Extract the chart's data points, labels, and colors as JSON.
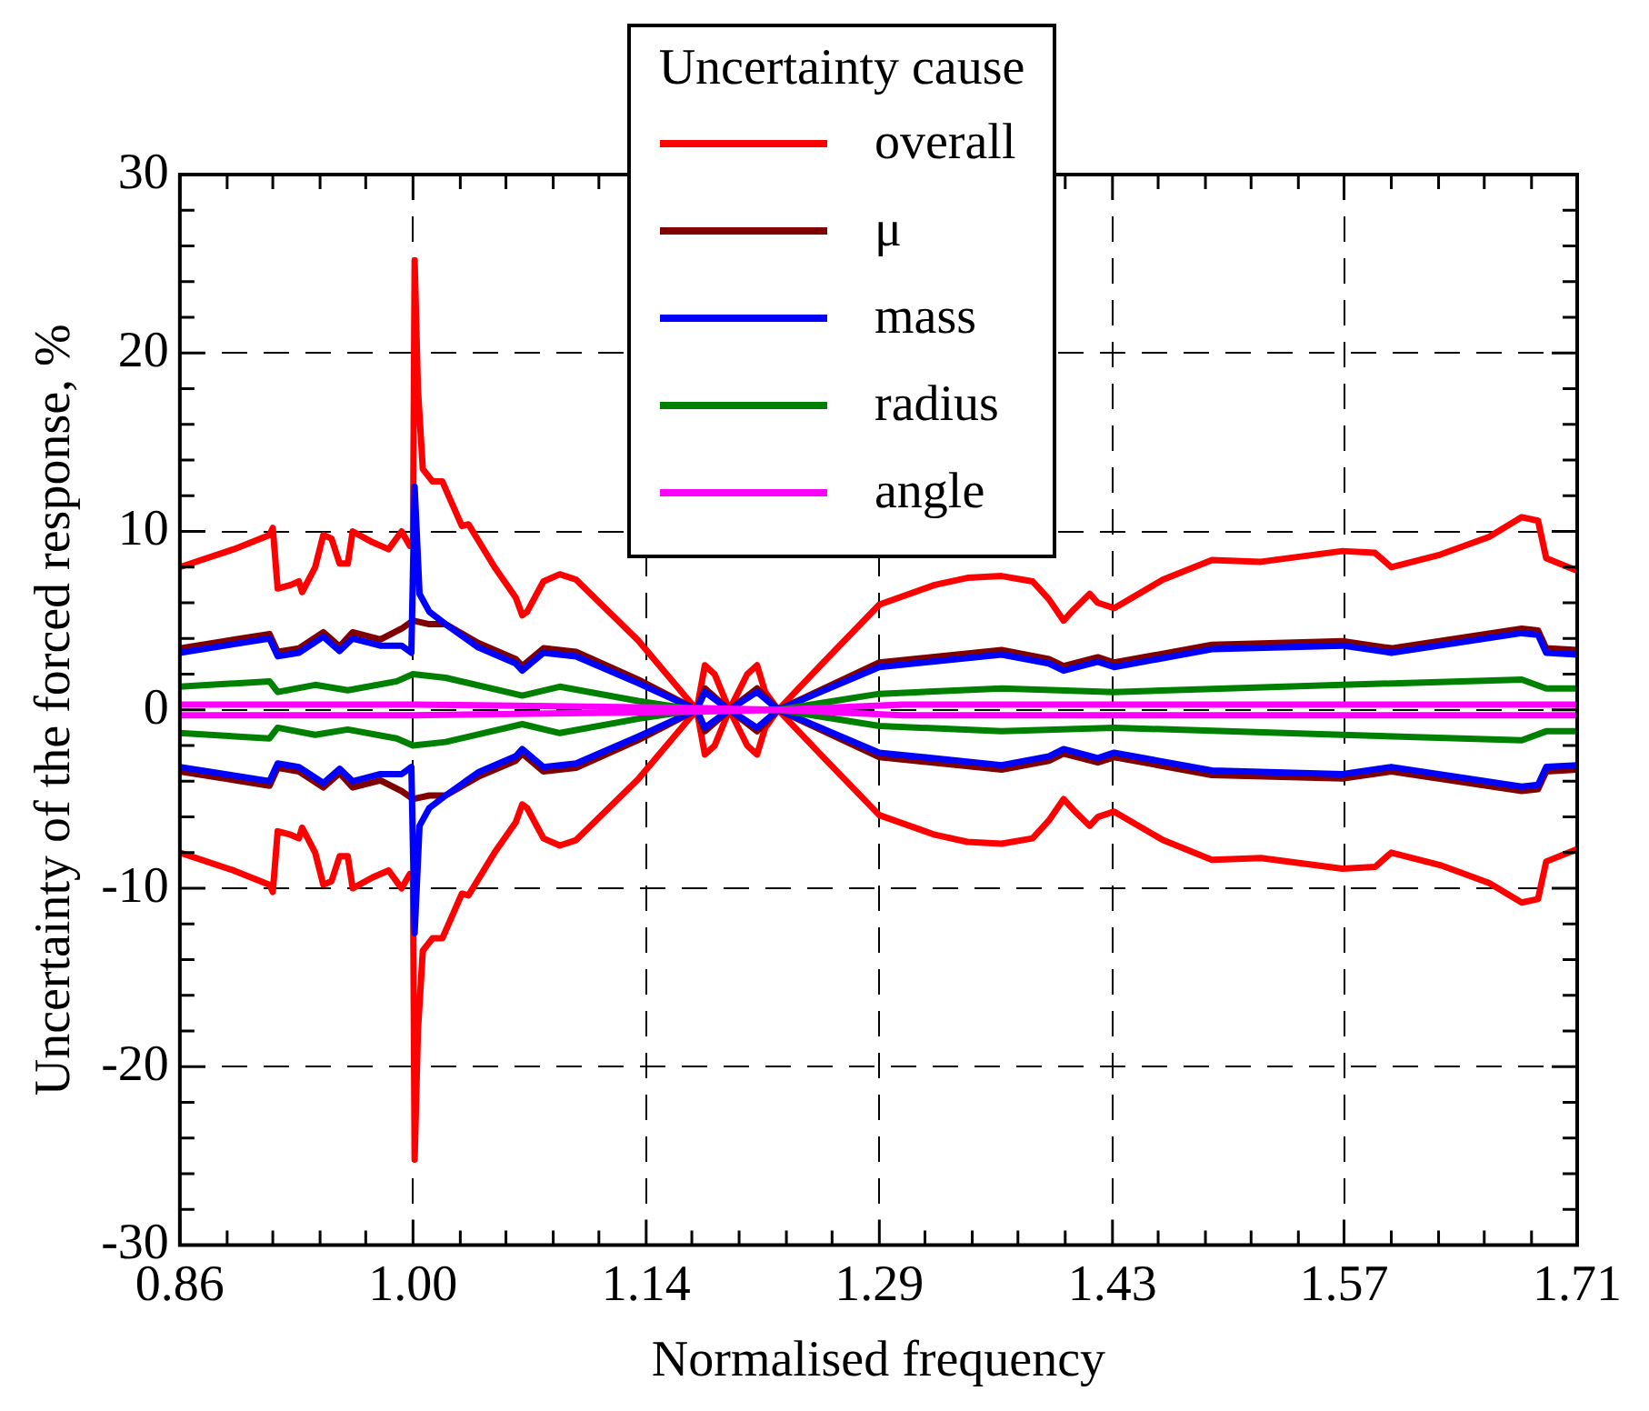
{
  "chart_data": {
    "type": "line",
    "xlabel": "Normalised frequency",
    "ylabel": "Uncertainty of the forced response, %",
    "legend_title": "Uncertainty cause",
    "legend": "top",
    "grid": true,
    "line_style": "solid",
    "marker": "none",
    "xlim": [
      0.857,
      1.714
    ],
    "xticks": [
      {
        "value": 0.857,
        "label": "0.86"
      },
      {
        "value": 0.886,
        "label": null
      },
      {
        "value": 0.914,
        "label": null
      },
      {
        "value": 0.943,
        "label": null
      },
      {
        "value": 0.971,
        "label": null
      },
      {
        "value": 1.0,
        "label": "1.00"
      },
      {
        "value": 1.029,
        "label": null
      },
      {
        "value": 1.057,
        "label": null
      },
      {
        "value": 1.086,
        "label": null
      },
      {
        "value": 1.114,
        "label": null
      },
      {
        "value": 1.143,
        "label": "1.14"
      },
      {
        "value": 1.171,
        "label": null
      },
      {
        "value": 1.2,
        "label": null
      },
      {
        "value": 1.229,
        "label": null
      },
      {
        "value": 1.257,
        "label": null
      },
      {
        "value": 1.286,
        "label": "1.29"
      },
      {
        "value": 1.314,
        "label": null
      },
      {
        "value": 1.343,
        "label": null
      },
      {
        "value": 1.371,
        "label": null
      },
      {
        "value": 1.4,
        "label": null
      },
      {
        "value": 1.429,
        "label": "1.43"
      },
      {
        "value": 1.457,
        "label": null
      },
      {
        "value": 1.486,
        "label": null
      },
      {
        "value": 1.514,
        "label": null
      },
      {
        "value": 1.543,
        "label": null
      },
      {
        "value": 1.571,
        "label": "1.57"
      },
      {
        "value": 1.6,
        "label": null
      },
      {
        "value": 1.629,
        "label": null
      },
      {
        "value": 1.657,
        "label": null
      },
      {
        "value": 1.686,
        "label": null
      },
      {
        "value": 1.714,
        "label": "1.71"
      }
    ],
    "ylim": [
      -30,
      30
    ],
    "yticks": [
      -30,
      {
        "value": -28,
        "label": null
      },
      {
        "value": -26,
        "label": null
      },
      {
        "value": -24,
        "label": null
      },
      {
        "value": -22,
        "label": null
      },
      -20,
      {
        "value": -18,
        "label": null
      },
      {
        "value": -16,
        "label": null
      },
      {
        "value": -14,
        "label": null
      },
      {
        "value": -12,
        "label": null
      },
      -10,
      {
        "value": -8,
        "label": null
      },
      {
        "value": -6,
        "label": null
      },
      {
        "value": -4,
        "label": null
      },
      {
        "value": -2,
        "label": null
      },
      0,
      {
        "value": 2,
        "label": null
      },
      {
        "value": 4,
        "label": null
      },
      {
        "value": 6,
        "label": null
      },
      {
        "value": 8,
        "label": null
      },
      10,
      {
        "value": 12,
        "label": null
      },
      {
        "value": 14,
        "label": null
      },
      {
        "value": 16,
        "label": null
      },
      {
        "value": 18,
        "label": null
      },
      20,
      {
        "value": 22,
        "label": null
      },
      {
        "value": 24,
        "label": null
      },
      {
        "value": 26,
        "label": null
      },
      {
        "value": 28,
        "label": null
      },
      30
    ],
    "series": [
      {
        "name": "overall",
        "color": "#ff0000",
        "x": [
          0.857,
          0.89,
          0.912,
          0.914,
          0.917,
          0.925,
          0.93,
          0.932,
          0.94,
          0.945,
          0.95,
          0.955,
          0.96,
          0.963,
          0.975,
          0.985,
          0.993,
          0.998,
          1.0,
          1.001,
          1.003,
          1.006,
          1.012,
          1.018,
          1.03,
          1.034,
          1.05,
          1.063,
          1.067,
          1.07,
          1.08,
          1.09,
          1.1,
          1.138,
          1.174,
          1.179,
          1.185,
          1.194,
          1.205,
          1.211,
          1.216,
          1.224,
          1.25,
          1.286,
          1.32,
          1.34,
          1.361,
          1.38,
          1.39,
          1.399,
          1.405,
          1.415,
          1.42,
          1.43,
          1.46,
          1.49,
          1.52,
          1.57,
          1.59,
          1.6,
          1.63,
          1.66,
          1.68,
          1.69,
          1.695,
          1.714
        ],
        "values": [
          8.0,
          9.0,
          9.8,
          10.2,
          6.8,
          7.0,
          7.2,
          6.6,
          8.0,
          9.8,
          9.6,
          8.2,
          8.2,
          10.0,
          9.4,
          9.0,
          10.0,
          9.2,
          9.5,
          25.2,
          18.0,
          13.5,
          12.8,
          12.8,
          10.3,
          10.4,
          8.0,
          6.3,
          5.3,
          5.5,
          7.2,
          7.6,
          7.3,
          3.9,
          0,
          2.5,
          2.0,
          0,
          2.0,
          2.5,
          1.0,
          0,
          2.5,
          5.9,
          7.0,
          7.4,
          7.5,
          7.2,
          6.2,
          5.0,
          5.6,
          6.5,
          6.0,
          5.7,
          7.3,
          8.4,
          8.3,
          8.9,
          8.8,
          8.0,
          8.7,
          9.7,
          10.8,
          10.6,
          8.5,
          7.8
        ]
      },
      {
        "color": "#ff0000",
        "x": [
          0.857,
          0.89,
          0.912,
          0.914,
          0.917,
          0.925,
          0.93,
          0.932,
          0.94,
          0.945,
          0.95,
          0.955,
          0.96,
          0.963,
          0.975,
          0.985,
          0.993,
          0.998,
          1.0,
          1.001,
          1.003,
          1.006,
          1.012,
          1.018,
          1.03,
          1.034,
          1.05,
          1.063,
          1.067,
          1.07,
          1.08,
          1.09,
          1.1,
          1.138,
          1.174,
          1.179,
          1.185,
          1.194,
          1.205,
          1.211,
          1.216,
          1.224,
          1.25,
          1.286,
          1.32,
          1.34,
          1.361,
          1.38,
          1.39,
          1.399,
          1.405,
          1.415,
          1.42,
          1.43,
          1.46,
          1.49,
          1.52,
          1.57,
          1.59,
          1.6,
          1.63,
          1.66,
          1.68,
          1.69,
          1.695,
          1.714
        ],
        "values": [
          -8.0,
          -9.0,
          -9.8,
          -10.2,
          -6.8,
          -7.0,
          -7.2,
          -6.6,
          -8.0,
          -9.8,
          -9.6,
          -8.2,
          -8.2,
          -10.0,
          -9.4,
          -9.0,
          -10.0,
          -9.2,
          -9.5,
          -25.2,
          -18.0,
          -13.5,
          -12.8,
          -12.8,
          -10.3,
          -10.4,
          -8.0,
          -6.3,
          -5.3,
          -5.5,
          -7.2,
          -7.6,
          -7.3,
          -3.9,
          0,
          -2.5,
          -2.0,
          0,
          -2.0,
          -2.5,
          -1.0,
          0,
          -2.5,
          -5.9,
          -7.0,
          -7.4,
          -7.5,
          -7.2,
          -6.2,
          -5.0,
          -5.6,
          -6.5,
          -6.0,
          -5.7,
          -7.3,
          -8.4,
          -8.3,
          -8.9,
          -8.8,
          -8.0,
          -8.7,
          -9.7,
          -10.8,
          -10.6,
          -8.5,
          -7.8
        ]
      },
      {
        "name": "μ",
        "color": "#800000",
        "x": [
          0.857,
          0.912,
          0.917,
          0.93,
          0.945,
          0.955,
          0.963,
          0.98,
          0.993,
          1.0,
          1.01,
          1.02,
          1.04,
          1.063,
          1.067,
          1.08,
          1.1,
          1.138,
          1.174,
          1.179,
          1.194,
          1.211,
          1.224,
          1.286,
          1.361,
          1.39,
          1.399,
          1.42,
          1.43,
          1.49,
          1.57,
          1.6,
          1.68,
          1.69,
          1.695,
          1.714
        ],
        "values": [
          3.45,
          4.25,
          3.25,
          3.45,
          4.35,
          3.55,
          4.35,
          3.95,
          4.55,
          5.0,
          4.8,
          4.8,
          3.75,
          2.85,
          2.45,
          3.45,
          3.25,
          1.7,
          0,
          1.2,
          0,
          1.2,
          0,
          2.65,
          3.35,
          2.85,
          2.45,
          2.95,
          2.65,
          3.65,
          3.85,
          3.45,
          4.55,
          4.45,
          3.45,
          3.35
        ]
      },
      {
        "color": "#800000",
        "x": [
          0.857,
          0.912,
          0.917,
          0.93,
          0.945,
          0.955,
          0.963,
          0.98,
          0.993,
          1.0,
          1.01,
          1.02,
          1.04,
          1.063,
          1.067,
          1.08,
          1.1,
          1.138,
          1.174,
          1.179,
          1.194,
          1.211,
          1.224,
          1.286,
          1.361,
          1.39,
          1.399,
          1.42,
          1.43,
          1.49,
          1.57,
          1.6,
          1.68,
          1.69,
          1.695,
          1.714
        ],
        "values": [
          -3.45,
          -4.25,
          -3.25,
          -3.45,
          -4.35,
          -3.55,
          -4.35,
          -3.95,
          -4.55,
          -5.0,
          -4.8,
          -4.8,
          -3.75,
          -2.85,
          -2.45,
          -3.45,
          -3.25,
          -1.7,
          0,
          -1.2,
          0,
          -1.2,
          0,
          -2.65,
          -3.35,
          -2.85,
          -2.45,
          -2.95,
          -2.65,
          -3.65,
          -3.85,
          -3.45,
          -4.55,
          -4.45,
          -3.45,
          -3.35
        ]
      },
      {
        "name": "mass",
        "color": "#0000ff",
        "x": [
          0.857,
          0.912,
          0.917,
          0.93,
          0.945,
          0.955,
          0.963,
          0.98,
          0.993,
          0.999,
          1.001,
          1.004,
          1.01,
          1.02,
          1.04,
          1.063,
          1.067,
          1.08,
          1.1,
          1.138,
          1.174,
          1.179,
          1.194,
          1.211,
          1.224,
          1.286,
          1.361,
          1.39,
          1.399,
          1.42,
          1.43,
          1.49,
          1.57,
          1.6,
          1.68,
          1.69,
          1.695,
          1.714
        ],
        "values": [
          3.2,
          4.0,
          3.0,
          3.2,
          4.1,
          3.3,
          4.0,
          3.6,
          3.6,
          3.2,
          12.5,
          6.5,
          5.5,
          4.8,
          3.5,
          2.6,
          2.2,
          3.2,
          3.0,
          1.5,
          0,
          1.0,
          0,
          1.0,
          0,
          2.4,
          3.1,
          2.6,
          2.2,
          2.7,
          2.4,
          3.4,
          3.6,
          3.2,
          4.3,
          4.2,
          3.2,
          3.1
        ]
      },
      {
        "color": "#0000ff",
        "x": [
          0.857,
          0.912,
          0.917,
          0.93,
          0.945,
          0.955,
          0.963,
          0.98,
          0.993,
          0.999,
          1.001,
          1.004,
          1.01,
          1.02,
          1.04,
          1.063,
          1.067,
          1.08,
          1.1,
          1.138,
          1.174,
          1.179,
          1.194,
          1.211,
          1.224,
          1.286,
          1.361,
          1.39,
          1.399,
          1.42,
          1.43,
          1.49,
          1.57,
          1.6,
          1.68,
          1.69,
          1.695,
          1.714
        ],
        "values": [
          -3.2,
          -4.0,
          -3.0,
          -3.2,
          -4.1,
          -3.3,
          -4.0,
          -3.6,
          -3.6,
          -3.2,
          -12.5,
          -6.5,
          -5.5,
          -4.8,
          -3.5,
          -2.6,
          -2.2,
          -3.2,
          -3.0,
          -1.5,
          0,
          -1.0,
          0,
          -1.0,
          0,
          -2.4,
          -3.1,
          -2.6,
          -2.2,
          -2.7,
          -2.4,
          -3.4,
          -3.6,
          -3.2,
          -4.3,
          -4.2,
          -3.2,
          -3.1
        ]
      },
      {
        "name": "radius",
        "color": "#008000",
        "x": [
          0.857,
          0.912,
          0.917,
          0.94,
          0.96,
          0.99,
          1.0,
          1.02,
          1.067,
          1.09,
          1.138,
          1.174,
          1.194,
          1.224,
          1.286,
          1.361,
          1.43,
          1.57,
          1.68,
          1.695,
          1.714
        ],
        "values": [
          1.3,
          1.6,
          1.0,
          1.4,
          1.1,
          1.6,
          2.0,
          1.8,
          0.8,
          1.3,
          0.5,
          0,
          0,
          0,
          0.9,
          1.2,
          1.0,
          1.4,
          1.7,
          1.2,
          1.2
        ]
      },
      {
        "color": "#008000",
        "x": [
          0.857,
          0.912,
          0.917,
          0.94,
          0.96,
          0.99,
          1.0,
          1.02,
          1.067,
          1.09,
          1.138,
          1.174,
          1.194,
          1.224,
          1.286,
          1.361,
          1.43,
          1.57,
          1.68,
          1.695,
          1.714
        ],
        "values": [
          -1.3,
          -1.6,
          -1.0,
          -1.4,
          -1.1,
          -1.6,
          -2.0,
          -1.8,
          -0.8,
          -1.3,
          -0.5,
          0,
          0,
          0,
          -0.9,
          -1.2,
          -1.0,
          -1.4,
          -1.7,
          -1.2,
          -1.2
        ]
      },
      {
        "name": "angle",
        "color": "#ff00ff",
        "x": [
          0.857,
          1.0,
          1.174,
          1.224,
          1.3,
          1.714
        ],
        "values": [
          0.3,
          0.3,
          0.1,
          0,
          0.3,
          0.3
        ]
      },
      {
        "color": "#ff00ff",
        "x": [
          0.857,
          1.0,
          1.174,
          1.224,
          1.3,
          1.714
        ],
        "values": [
          -0.3,
          -0.3,
          -0.1,
          0,
          -0.3,
          -0.3
        ]
      }
    ]
  }
}
